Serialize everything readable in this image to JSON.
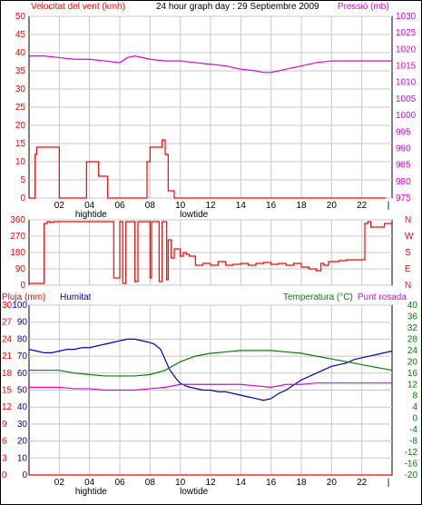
{
  "chart_data": [
    {
      "type": "line",
      "title": "24 hour graph day : 29 Septiembre 2009",
      "ylabel": "Velocitat del vent (kmh)",
      "y2label": "Pressió (mb)",
      "xlim": [
        0,
        24
      ],
      "ylim": [
        0,
        50
      ],
      "y2lim": [
        975,
        1030
      ],
      "x_ticks": [
        "02",
        "04",
        "06",
        "08",
        "10",
        "12",
        "14",
        "16",
        "18",
        "20",
        "22"
      ],
      "x_tick_values": [
        2,
        4,
        6,
        8,
        10,
        12,
        14,
        16,
        18,
        20,
        22
      ],
      "end_tick": "|",
      "y_ticks": [
        0,
        5,
        10,
        15,
        20,
        25,
        30,
        35,
        40,
        45,
        50
      ],
      "y2_ticks": [
        975,
        980,
        985,
        990,
        995,
        1000,
        1005,
        1010,
        1015,
        1020,
        1025,
        1030
      ],
      "tide_labels": [
        {
          "text": "hightide",
          "x": 4.1
        },
        {
          "text": "lowtide",
          "x": 10.9
        }
      ],
      "grid": true,
      "colors": {
        "gust": "#ff0000",
        "avg": "#0000c0",
        "speed": "#008000",
        "pressure": "#e000e0",
        "axis_left": "#ff0000",
        "axis_right": "#e000e0"
      },
      "series": [
        {
          "role": "gust",
          "axis": "left",
          "x": [
            0,
            0.4,
            0.5,
            1.8,
            2,
            2.2,
            3.6,
            3.8,
            4.4,
            4.6,
            5.2,
            5.4,
            5.6,
            5.8,
            6.2,
            6.4,
            6.8,
            7,
            7.6,
            7.8,
            8,
            8.6,
            8.8,
            9,
            9.2,
            9.6,
            9.8,
            10.6,
            10.8,
            11,
            11.2,
            11.4,
            11.6,
            11.8,
            12,
            12.2,
            12.4,
            12.6,
            12.8,
            13,
            13.2,
            13.4,
            13.6,
            13.8,
            14,
            14.2,
            14.4,
            14.6,
            14.8,
            15,
            15.2,
            15.4,
            15.6,
            15.8,
            16,
            16.2,
            16.4,
            16.6,
            16.8,
            17,
            17.2,
            17.4,
            17.6,
            17.8,
            18,
            18.2,
            18.4,
            18.6,
            18.8,
            19,
            19.2,
            19.4,
            19.6,
            20,
            22,
            22.2,
            22.4,
            22.6,
            22.8,
            23,
            23.2,
            23.4,
            23.6
          ],
          "y": [
            0,
            12,
            14,
            14,
            0,
            0,
            0,
            10,
            10,
            6,
            0,
            0,
            0,
            0,
            0,
            0,
            0,
            0,
            0,
            10,
            14,
            14,
            16,
            12,
            2,
            0,
            0,
            0,
            0,
            0,
            0,
            0,
            0,
            0,
            0,
            0,
            0,
            0,
            0,
            0,
            0,
            0,
            0,
            0,
            0,
            0,
            0,
            0,
            0,
            0,
            0,
            0,
            0,
            0,
            0,
            0,
            0,
            0,
            0,
            0,
            0,
            0,
            0,
            0,
            0,
            0,
            0,
            0,
            0,
            0,
            0,
            0,
            0,
            0,
            0,
            0,
            0,
            0,
            0,
            0,
            0,
            0,
            0
          ]
        },
        {
          "role": "avg",
          "axis": "left",
          "x": [],
          "y": []
        },
        {
          "role": "speed",
          "axis": "left",
          "x": [],
          "y": []
        },
        {
          "role": "pressure",
          "axis": "right",
          "x": [
            0,
            1,
            2,
            3,
            4,
            5,
            6,
            6.5,
            7,
            8,
            9,
            10,
            11,
            12,
            13,
            14,
            15,
            15.5,
            16,
            16.5,
            17,
            18,
            19,
            20,
            21,
            22,
            23,
            24
          ],
          "y": [
            1018,
            1018,
            1017.5,
            1017,
            1017,
            1016.5,
            1016,
            1017.5,
            1018,
            1017,
            1016.5,
            1016.5,
            1016,
            1015.5,
            1015,
            1014,
            1013.5,
            1013,
            1013,
            1013.5,
            1014,
            1015,
            1016,
            1016.5,
            1016.5,
            1016.5,
            1016.5,
            1016.5
          ]
        }
      ]
    },
    {
      "type": "line",
      "xlim": [
        0,
        24
      ],
      "ylim": [
        0,
        360
      ],
      "y_ticks": [
        0,
        90,
        180,
        270,
        360
      ],
      "y2_ticks": [
        "N",
        "E",
        "S",
        "W",
        "N"
      ],
      "grid": true,
      "colors": {
        "direction": "#ff0000"
      },
      "series": [
        {
          "role": "direction",
          "x": [
            0,
            0.5,
            1,
            1.2,
            1.4,
            1.6,
            2,
            3,
            4,
            5,
            5.4,
            5.6,
            6,
            6.2,
            6.4,
            6.6,
            7,
            7.2,
            7.6,
            7.8,
            8,
            8.1,
            8.4,
            8.6,
            8.8,
            9,
            9.1,
            9.2,
            9.4,
            9.6,
            9.8,
            10,
            10.2,
            10.4,
            10.6,
            11,
            11.5,
            12,
            12.5,
            13,
            13.5,
            14,
            14.5,
            15,
            15.5,
            16,
            16.5,
            17,
            17.5,
            18,
            18.5,
            19,
            19.3,
            19.5,
            19.8,
            20,
            20.5,
            21,
            21.5,
            22,
            22.2,
            22.4,
            22.6,
            23,
            23.5,
            24
          ],
          "y": [
            10,
            10,
            340,
            350,
            345,
            350,
            350,
            350,
            350,
            350,
            350,
            40,
            350,
            10,
            350,
            350,
            20,
            350,
            350,
            350,
            40,
            350,
            350,
            20,
            350,
            350,
            30,
            250,
            150,
            200,
            200,
            160,
            180,
            170,
            160,
            110,
            120,
            110,
            130,
            110,
            115,
            120,
            110,
            120,
            125,
            115,
            120,
            110,
            120,
            100,
            90,
            80,
            120,
            110,
            130,
            130,
            135,
            140,
            140,
            140,
            340,
            350,
            320,
            320,
            340,
            340
          ]
        }
      ]
    },
    {
      "type": "line",
      "ylabel": "Pluja (mm)",
      "y2label": "Humitat",
      "y3label": "Temperatura (°C)",
      "y4label": "Punt rosada",
      "xlim": [
        0,
        24
      ],
      "ylim": [
        0,
        30
      ],
      "rain_ticks": [
        0,
        3,
        6,
        9,
        12,
        15,
        18,
        21,
        24,
        27,
        30
      ],
      "humidity_ticks": [
        0,
        10,
        20,
        30,
        40,
        50,
        60,
        70,
        80,
        90,
        100
      ],
      "temp_ticks": [
        -20,
        -16,
        -12,
        -8,
        -4,
        0,
        4,
        8,
        12,
        16,
        20,
        24,
        28,
        32,
        36,
        40
      ],
      "x_ticks": [
        "02",
        "04",
        "06",
        "08",
        "10",
        "12",
        "14",
        "16",
        "18",
        "20",
        "22"
      ],
      "tide_labels": [
        {
          "text": "hightide",
          "x": 4.1
        },
        {
          "text": "lowtide",
          "x": 10.9
        }
      ],
      "grid": true,
      "colors": {
        "rain": "#ff0000",
        "humidity": "#0000c0",
        "temperature": "#008000",
        "dewpoint": "#e000e0"
      },
      "series": [
        {
          "role": "rain",
          "axis": "rain",
          "x": [
            0,
            24
          ],
          "y": [
            0,
            0
          ]
        },
        {
          "role": "humidity",
          "axis": "humidity",
          "x": [
            0,
            0.5,
            1,
            1.5,
            2,
            2.5,
            3,
            3.5,
            4,
            4.5,
            5,
            5.5,
            6,
            6.5,
            7,
            7.5,
            8,
            8.3,
            8.7,
            9,
            9.3,
            9.7,
            10,
            10.5,
            11,
            11.5,
            12,
            12.5,
            13,
            13.5,
            14,
            14.5,
            15,
            15.5,
            16,
            16.5,
            17,
            17.5,
            18,
            18.5,
            19,
            19.5,
            20,
            20.5,
            21,
            21.5,
            22,
            22.5,
            23,
            23.5,
            24
          ],
          "y": [
            74,
            73,
            72,
            72,
            73,
            74,
            74,
            75,
            75,
            76,
            77,
            78,
            79,
            80,
            80,
            79,
            78,
            77,
            74,
            68,
            62,
            57,
            54,
            52,
            51,
            50,
            50,
            49,
            49,
            48,
            47,
            46,
            45,
            44,
            45,
            48,
            50,
            53,
            56,
            58,
            60,
            62,
            64,
            65,
            66,
            68,
            69,
            70,
            71,
            72,
            73
          ]
        },
        {
          "role": "temperature",
          "axis": "temp",
          "x": [
            0,
            1,
            2,
            3,
            4,
            5,
            6,
            7,
            8,
            9,
            10,
            11,
            12,
            13,
            14,
            15,
            16,
            17,
            18,
            19,
            20,
            21,
            22,
            23,
            24
          ],
          "y": [
            17,
            17,
            17,
            16,
            15.5,
            15,
            15,
            15,
            15.5,
            17,
            20,
            22,
            23,
            23.5,
            24,
            24,
            24,
            23.5,
            23,
            22,
            21,
            20,
            19,
            18,
            17
          ]
        },
        {
          "role": "dewpoint",
          "axis": "temp",
          "x": [
            0,
            1,
            2,
            3,
            4,
            5,
            6,
            7,
            8,
            9,
            10,
            11,
            12,
            13,
            14,
            15,
            16,
            17,
            18,
            19,
            20,
            21,
            22,
            23,
            24
          ],
          "y": [
            11,
            11,
            11,
            10.5,
            10.5,
            10,
            10,
            10,
            10.5,
            11,
            12,
            12,
            12,
            12,
            12,
            11.5,
            11,
            12,
            12,
            12.5,
            12.5,
            12.5,
            12.5,
            12.5,
            12.5
          ]
        }
      ]
    }
  ]
}
